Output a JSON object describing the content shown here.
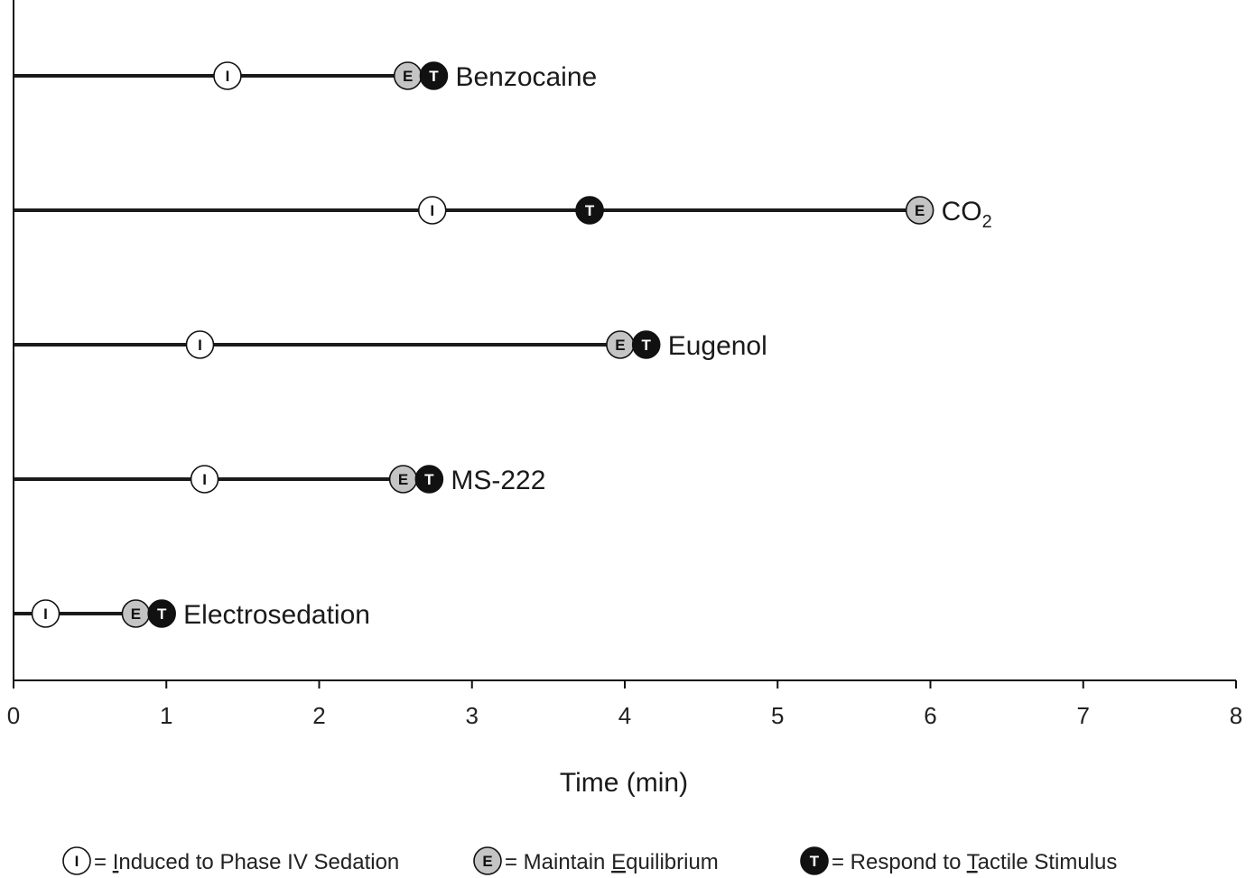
{
  "chart_data": {
    "type": "timeline",
    "xlabel": "Time (min)",
    "xlim": [
      0,
      8
    ],
    "x_ticks": [
      "0",
      "1",
      "2",
      "3",
      "4",
      "5",
      "6",
      "7",
      "8"
    ],
    "grid": false,
    "legend_position": "bottom",
    "series": [
      {
        "name": "Benzocaine",
        "I": 1.4,
        "E": 2.58,
        "T": 2.75
      },
      {
        "name": "CO",
        "subscript": "2",
        "I": 2.74,
        "T": 3.77,
        "E": 5.93
      },
      {
        "name": "Eugenol",
        "I": 1.22,
        "E": 3.97,
        "T": 4.14
      },
      {
        "name": "MS-222",
        "I": 1.25,
        "E": 2.55,
        "T": 2.72
      },
      {
        "name": "Electrosedation",
        "I": 0.21,
        "E": 0.8,
        "T": 0.97
      }
    ],
    "markers": {
      "I": {
        "letter": "I",
        "fill": "#ffffff",
        "text": "#111111"
      },
      "E": {
        "letter": "E",
        "fill": "#c4c4c4",
        "text": "#111111"
      },
      "T": {
        "letter": "T",
        "fill": "#111111",
        "text": "#ffffff"
      }
    },
    "legend": [
      {
        "key": "I",
        "pre": " = ",
        "ul": "I",
        "rest": "nduced to Phase IV Sedation"
      },
      {
        "key": "E",
        "pre": " = Maintain ",
        "ul": "E",
        "rest": "quilibrium"
      },
      {
        "key": "T",
        "pre": " = Respond to ",
        "ul": "T",
        "rest": "actile Stimulus"
      }
    ]
  }
}
